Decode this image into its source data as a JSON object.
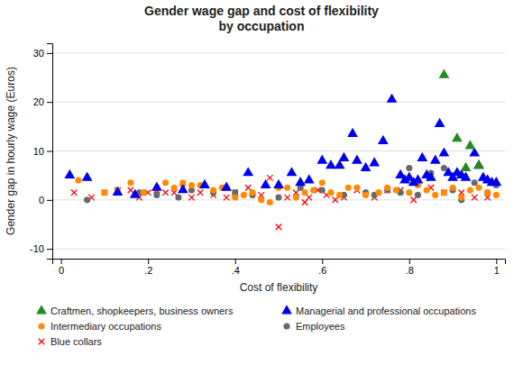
{
  "chart_data": {
    "type": "scatter",
    "title": "Gender wage gap and cost of flexibility\nby occupation",
    "xlabel": "Cost of flexibility",
    "ylabel": "Gender gap in hourly wage (Euros)",
    "xlim": [
      -0.02,
      1.02
    ],
    "ylim": [
      -12,
      32
    ],
    "xticks": [
      0,
      {
        "value": 0.2,
        "label": ".2"
      },
      {
        "value": 0.4,
        "label": ".4"
      },
      {
        "value": 0.6,
        "label": ".6"
      },
      {
        "value": 0.8,
        "label": ".8"
      },
      1
    ],
    "yticks": [
      -10,
      0,
      10,
      20,
      30
    ],
    "grid": "y",
    "series": [
      {
        "name": "Craftmen, shopkeepers, business owners",
        "color": "#228B22",
        "marker": "triangle",
        "x": [
          0.88,
          0.91,
          0.93,
          0.94,
          0.96
        ],
        "values": [
          25.5,
          12.5,
          6.5,
          11.0,
          7.0
        ]
      },
      {
        "name": "Managerial and professional occupations",
        "color": "#0000EE",
        "marker": "triangle",
        "x": [
          0.02,
          0.06,
          0.13,
          0.17,
          0.22,
          0.28,
          0.33,
          0.38,
          0.43,
          0.47,
          0.5,
          0.53,
          0.55,
          0.57,
          0.6,
          0.62,
          0.64,
          0.65,
          0.67,
          0.68,
          0.7,
          0.72,
          0.74,
          0.76,
          0.78,
          0.79,
          0.8,
          0.81,
          0.82,
          0.83,
          0.84,
          0.85,
          0.86,
          0.87,
          0.88,
          0.89,
          0.9,
          0.91,
          0.92,
          0.93,
          0.95,
          0.96,
          0.97,
          0.98,
          0.99,
          1.0
        ],
        "values": [
          5.0,
          4.5,
          1.5,
          1.0,
          2.5,
          2.0,
          3.0,
          2.5,
          5.5,
          3.0,
          3.0,
          5.5,
          3.5,
          4.0,
          8.0,
          7.0,
          7.0,
          8.5,
          13.5,
          8.0,
          6.5,
          7.5,
          12.0,
          20.5,
          5.0,
          4.0,
          4.5,
          3.5,
          4.0,
          8.5,
          5.0,
          4.5,
          8.0,
          15.5,
          9.5,
          5.5,
          4.5,
          5.5,
          5.0,
          4.5,
          9.5,
          7.0,
          4.5,
          4.0,
          3.5,
          3.5
        ]
      },
      {
        "name": "Intermediary occupations",
        "color": "#FF8C00",
        "marker": "circle",
        "x": [
          0.04,
          0.1,
          0.13,
          0.16,
          0.19,
          0.22,
          0.24,
          0.26,
          0.28,
          0.3,
          0.32,
          0.35,
          0.37,
          0.4,
          0.42,
          0.44,
          0.46,
          0.48,
          0.5,
          0.52,
          0.54,
          0.56,
          0.58,
          0.6,
          0.62,
          0.64,
          0.66,
          0.68,
          0.7,
          0.73,
          0.75,
          0.77,
          0.8,
          0.82,
          0.84,
          0.86,
          0.88,
          0.9,
          0.92,
          0.94,
          0.96,
          0.98,
          1.0
        ],
        "values": [
          4.0,
          1.5,
          2.0,
          3.5,
          1.5,
          2.5,
          3.5,
          2.5,
          3.5,
          3.0,
          3.0,
          2.0,
          2.5,
          0.5,
          1.0,
          1.5,
          0.0,
          -0.5,
          2.5,
          2.5,
          0.5,
          1.5,
          2.0,
          3.5,
          1.5,
          1.0,
          2.5,
          2.5,
          1.0,
          1.5,
          2.5,
          2.0,
          1.5,
          3.0,
          2.0,
          1.0,
          1.5,
          2.5,
          0.5,
          2.0,
          2.5,
          1.5,
          1.0
        ]
      },
      {
        "name": "Employees",
        "color": "#696969",
        "marker": "circle",
        "x": [
          0.06,
          0.18,
          0.22,
          0.27,
          0.3,
          0.35,
          0.4,
          0.44,
          0.5,
          0.55,
          0.6,
          0.65,
          0.7,
          0.72,
          0.75,
          0.78,
          0.8,
          0.82,
          0.85,
          0.88,
          0.9,
          0.92,
          0.95,
          0.98,
          1.0
        ],
        "values": [
          0.0,
          1.5,
          1.0,
          0.5,
          2.0,
          1.5,
          1.5,
          1.0,
          0.5,
          2.5,
          2.0,
          1.0,
          1.5,
          1.0,
          2.0,
          1.5,
          6.5,
          1.0,
          5.5,
          6.5,
          2.0,
          0.0,
          3.5,
          1.5,
          3.0
        ]
      },
      {
        "name": "Blue collars",
        "color": "#FF0000",
        "marker": "x",
        "x": [
          0.03,
          0.07,
          0.1,
          0.13,
          0.16,
          0.18,
          0.2,
          0.22,
          0.24,
          0.26,
          0.28,
          0.3,
          0.32,
          0.35,
          0.38,
          0.4,
          0.43,
          0.46,
          0.48,
          0.5,
          0.52,
          0.54,
          0.56,
          0.57,
          0.59,
          0.61,
          0.63,
          0.65,
          0.68,
          0.72,
          0.75,
          0.78,
          0.81,
          0.85,
          0.88,
          0.92,
          0.95,
          0.98
        ],
        "values": [
          1.5,
          0.5,
          1.5,
          2.0,
          2.0,
          0.5,
          1.5,
          2.0,
          1.5,
          1.5,
          2.5,
          0.5,
          1.5,
          1.0,
          0.5,
          1.5,
          2.5,
          1.0,
          4.5,
          -5.5,
          0.5,
          1.5,
          -0.5,
          0.5,
          2.0,
          1.0,
          0.0,
          0.5,
          2.0,
          0.5,
          2.0,
          2.0,
          0.0,
          2.5,
          1.5,
          1.5,
          0.5,
          0.5
        ]
      }
    ]
  }
}
